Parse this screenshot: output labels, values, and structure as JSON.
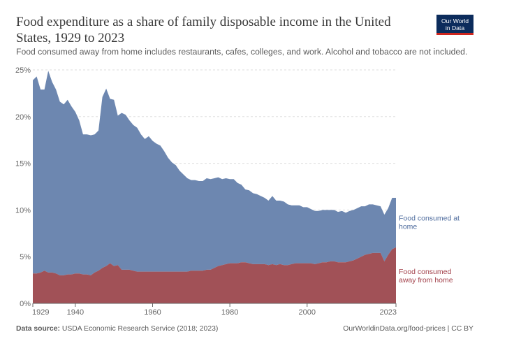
{
  "header": {
    "title": "Food expenditure as a share of family disposable income in the United States, 1929 to 2023",
    "subtitle": "Food consumed away from home includes restaurants, cafes, colleges, and work. Alcohol and tobacco are not included."
  },
  "logo": {
    "line1": "Our World",
    "line2": "in Data"
  },
  "footer": {
    "source_label": "Data source:",
    "source_text": "USDA Economic Research Service (2018; 2023)",
    "credit": "OurWorldinData.org/food-prices | CC BY"
  },
  "chart_data": {
    "type": "area",
    "stacked": true,
    "title": "Food expenditure as a share of family disposable income in the United States, 1929 to 2023",
    "xlabel": "",
    "ylabel": "",
    "xlim": [
      1929,
      2023
    ],
    "ylim": [
      0,
      25
    ],
    "y_ticks": [
      0,
      5,
      10,
      15,
      20,
      25
    ],
    "y_tick_labels": [
      "0%",
      "5%",
      "10%",
      "15%",
      "20%",
      "25%"
    ],
    "x_ticks": [
      1929,
      1940,
      1960,
      1980,
      2000,
      2023
    ],
    "x_tick_labels": [
      "1929",
      "1940",
      "1960",
      "1980",
      "2000",
      "2023"
    ],
    "grid": true,
    "colors": {
      "home": "#6d87b0",
      "away": "#a15157",
      "home_label": "#4c6a9c",
      "away_label": "#a2404a",
      "grid": "#dddddd",
      "axis": "#666666",
      "tick_text": "#666666"
    },
    "x": [
      1929,
      1930,
      1931,
      1932,
      1933,
      1934,
      1935,
      1936,
      1937,
      1938,
      1939,
      1940,
      1941,
      1942,
      1943,
      1944,
      1945,
      1946,
      1947,
      1948,
      1949,
      1950,
      1951,
      1952,
      1953,
      1954,
      1955,
      1956,
      1957,
      1958,
      1959,
      1960,
      1961,
      1962,
      1963,
      1964,
      1965,
      1966,
      1967,
      1968,
      1969,
      1970,
      1971,
      1972,
      1973,
      1974,
      1975,
      1976,
      1977,
      1978,
      1979,
      1980,
      1981,
      1982,
      1983,
      1984,
      1985,
      1986,
      1987,
      1988,
      1989,
      1990,
      1991,
      1992,
      1993,
      1994,
      1995,
      1996,
      1997,
      1998,
      1999,
      2000,
      2001,
      2002,
      2003,
      2004,
      2005,
      2006,
      2007,
      2008,
      2009,
      2010,
      2011,
      2012,
      2013,
      2014,
      2015,
      2016,
      2017,
      2018,
      2019,
      2020,
      2021,
      2022,
      2023
    ],
    "series": [
      {
        "name": "Food consumed away from home",
        "legend_label": "Food consumed away from home",
        "values": [
          3.2,
          3.2,
          3.3,
          3.5,
          3.3,
          3.3,
          3.2,
          3.0,
          3.0,
          3.1,
          3.1,
          3.2,
          3.2,
          3.1,
          3.1,
          3.0,
          3.3,
          3.5,
          3.8,
          4.0,
          4.3,
          4.0,
          4.1,
          3.6,
          3.6,
          3.6,
          3.5,
          3.4,
          3.4,
          3.4,
          3.4,
          3.4,
          3.4,
          3.4,
          3.4,
          3.4,
          3.4,
          3.4,
          3.4,
          3.4,
          3.4,
          3.5,
          3.5,
          3.5,
          3.5,
          3.6,
          3.6,
          3.8,
          4.0,
          4.1,
          4.2,
          4.3,
          4.3,
          4.3,
          4.4,
          4.4,
          4.3,
          4.2,
          4.2,
          4.2,
          4.2,
          4.1,
          4.2,
          4.1,
          4.2,
          4.1,
          4.1,
          4.2,
          4.3,
          4.3,
          4.3,
          4.3,
          4.3,
          4.2,
          4.3,
          4.4,
          4.4,
          4.5,
          4.5,
          4.4,
          4.4,
          4.4,
          4.5,
          4.6,
          4.8,
          5.0,
          5.2,
          5.3,
          5.4,
          5.4,
          5.4,
          4.5,
          5.2,
          5.8,
          6.0
        ]
      },
      {
        "name": "Food consumed at home",
        "legend_label": "Food consumed at home",
        "values": [
          20.7,
          21.1,
          19.6,
          19.4,
          21.6,
          20.4,
          19.7,
          18.6,
          18.3,
          18.7,
          18.0,
          17.3,
          16.4,
          15.0,
          15.0,
          15.0,
          14.8,
          15.0,
          18.3,
          19.0,
          17.6,
          17.8,
          16.0,
          16.8,
          16.6,
          16.0,
          15.6,
          15.4,
          14.7,
          14.2,
          14.5,
          14.0,
          13.7,
          13.5,
          12.9,
          12.2,
          11.7,
          11.4,
          10.8,
          10.4,
          10.0,
          9.7,
          9.7,
          9.6,
          9.6,
          9.8,
          9.7,
          9.6,
          9.5,
          9.2,
          9.2,
          9.0,
          9.0,
          8.6,
          8.3,
          7.8,
          7.8,
          7.6,
          7.5,
          7.3,
          7.1,
          6.9,
          7.3,
          6.9,
          6.8,
          6.8,
          6.5,
          6.3,
          6.2,
          6.2,
          6.0,
          6.0,
          5.8,
          5.7,
          5.6,
          5.6,
          5.6,
          5.5,
          5.5,
          5.4,
          5.5,
          5.3,
          5.4,
          5.4,
          5.4,
          5.4,
          5.2,
          5.3,
          5.2,
          5.1,
          5.0,
          5.0,
          5.0,
          5.5,
          5.3
        ]
      }
    ]
  }
}
